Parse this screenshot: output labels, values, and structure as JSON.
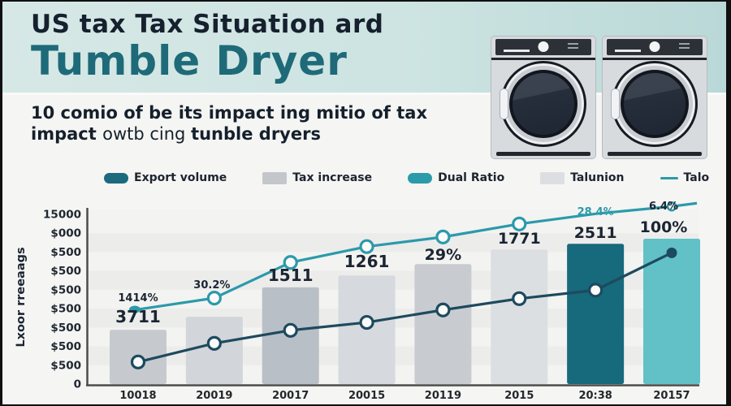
{
  "header": {
    "title_line1": "US tax Tax Situation ard",
    "title_line2": "Tumble Dryer",
    "bg_color": "#cde4e2",
    "title1_color": "#16202e",
    "title2_color": "#1e6a78"
  },
  "subtitle": {
    "line1": "10 comio of be its impact ing mitio of tax",
    "line2_bold1": "impact ",
    "line2_normal": "owtb cing ",
    "line2_bold2": "tunble dryers"
  },
  "legend": {
    "items": [
      {
        "label": "Export volume",
        "swatch": "pill",
        "color": "#1b6a7d"
      },
      {
        "label": "Tax increase",
        "swatch": "rect",
        "color": "#c3c7cc"
      },
      {
        "label": "Dual Ratio",
        "swatch": "pill",
        "color": "#2b9aaa"
      },
      {
        "label": "Talunion",
        "swatch": "rect",
        "color": "#dcdee1"
      },
      {
        "label": "Talo",
        "swatch": "line",
        "color": "#2b9aaa"
      }
    ]
  },
  "chart_data": {
    "type": "combo bar+line",
    "title": "",
    "xlabel": "",
    "ylabel": "Lxoor rreeaags",
    "categories": [
      "10018",
      "20019",
      "20017",
      "20015",
      "20119",
      "2015",
      "20:38",
      "20157"
    ],
    "y_tick_labels": [
      "15000",
      "$000",
      "$500",
      "$500",
      "$500",
      "$500",
      "$500",
      "$500",
      "$500",
      "0"
    ],
    "ylim": [
      0,
      15000
    ],
    "grid": "horizontal-stripes",
    "legend_position": "top",
    "series": [
      {
        "name": "Tax increase",
        "type": "bar",
        "values": [
          4800,
          5950,
          8550,
          9600,
          10600,
          11900,
          12400,
          12850
        ],
        "bar_colors": [
          "#c6cace",
          "#d2d5d9",
          "#b9bfc7",
          "#d6d9dd",
          "#c8ccd1",
          "#dcdfe2",
          "#17697c",
          "#62c0c7"
        ]
      },
      {
        "name": "Dual Ratio",
        "type": "line",
        "color": "#2b9aaa",
        "values": [
          6600,
          7600,
          10750,
          12150,
          13000,
          14150,
          15050,
          15700
        ],
        "markers": [
          "blob",
          "open",
          "open",
          "open",
          "open",
          "open",
          "none",
          "open-small"
        ]
      },
      {
        "name": "Export volume",
        "type": "line",
        "color": "#1d4a5e",
        "values": [
          1950,
          3600,
          4750,
          5450,
          6550,
          7550,
          8300,
          11600
        ],
        "markers": [
          "open",
          "open",
          "open",
          "open",
          "open",
          "open",
          "open",
          "filled"
        ]
      }
    ],
    "annotations": [
      {
        "text": "1414%",
        "cat": 0,
        "y": 371,
        "size": 13,
        "color": "#1b2533",
        "dx": 0
      },
      {
        "text": "3711",
        "cat": 0,
        "y": 397,
        "size": 20,
        "color": "#1b2533",
        "dx": 0
      },
      {
        "text": "30.2%",
        "cat": 1,
        "y": 355,
        "size": 13,
        "color": "#1b2533",
        "dx": -3
      },
      {
        "text": "1511",
        "cat": 2,
        "y": 346,
        "size": 20,
        "color": "#1b2533",
        "dx": 0
      },
      {
        "text": "1261",
        "cat": 3,
        "y": 329,
        "size": 20,
        "color": "#1b2533",
        "dx": 0
      },
      {
        "text": "29%",
        "cat": 4,
        "y": 320,
        "size": 19,
        "color": "#1b2533",
        "dx": 0
      },
      {
        "text": "1771",
        "cat": 5,
        "y": 300,
        "size": 19,
        "color": "#1b2533",
        "dx": 0
      },
      {
        "text": "2511",
        "cat": 6,
        "y": 293,
        "size": 19,
        "color": "#1b2533",
        "dx": 0
      },
      {
        "text": "28.4%",
        "cat": 6,
        "y": 265,
        "size": 13,
        "color": "#2b9aaa",
        "dx": 0
      },
      {
        "text": "100%",
        "cat": 7,
        "y": 286,
        "size": 19,
        "color": "#1b2533",
        "dx": -10
      },
      {
        "text": "6.4%",
        "cat": 7,
        "y": 258,
        "size": 13,
        "color": "#1b2533",
        "dx": -10
      }
    ]
  }
}
